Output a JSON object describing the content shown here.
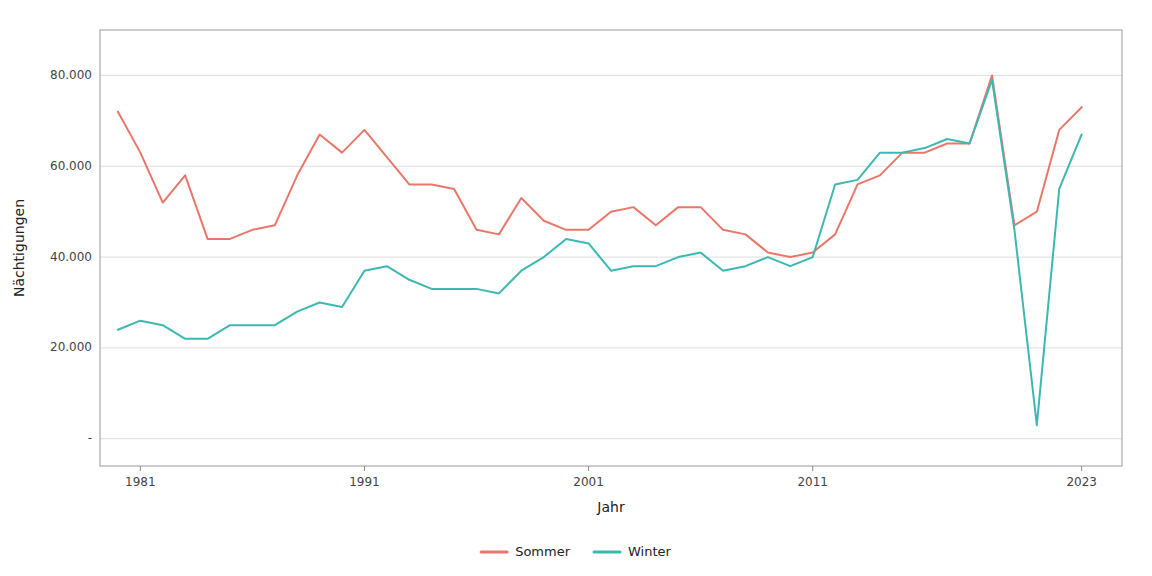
{
  "chart_data": {
    "type": "line",
    "xlabel": "Jahr",
    "ylabel": "Nächtigungen",
    "x": [
      1980,
      1981,
      1982,
      1983,
      1984,
      1985,
      1986,
      1987,
      1988,
      1989,
      1990,
      1991,
      1992,
      1993,
      1994,
      1995,
      1996,
      1997,
      1998,
      1999,
      2000,
      2001,
      2002,
      2003,
      2004,
      2005,
      2006,
      2007,
      2008,
      2009,
      2010,
      2011,
      2012,
      2013,
      2014,
      2015,
      2016,
      2017,
      2018,
      2019,
      2020,
      2021,
      2022,
      2023
    ],
    "series": [
      {
        "name": "Sommer",
        "color": "#E8776A",
        "values": [
          72000,
          63000,
          52000,
          58000,
          44000,
          44000,
          46000,
          47000,
          58000,
          67000,
          63000,
          68000,
          62000,
          56000,
          56000,
          55000,
          46000,
          45000,
          53000,
          48000,
          46000,
          46000,
          50000,
          51000,
          47000,
          51000,
          51000,
          46000,
          45000,
          41000,
          40000,
          41000,
          45000,
          56000,
          58000,
          63000,
          63000,
          65000,
          65000,
          80000,
          47000,
          50000,
          68000,
          73000
        ]
      },
      {
        "name": "Winter",
        "color": "#3CB8B2",
        "values": [
          24000,
          26000,
          25000,
          22000,
          22000,
          25000,
          25000,
          25000,
          28000,
          30000,
          29000,
          37000,
          38000,
          35000,
          33000,
          33000,
          33000,
          32000,
          37000,
          40000,
          44000,
          43000,
          37000,
          38000,
          38000,
          40000,
          41000,
          37000,
          38000,
          40000,
          38000,
          40000,
          56000,
          57000,
          63000,
          63000,
          64000,
          66000,
          65000,
          79000,
          46000,
          3000,
          55000,
          67000
        ]
      }
    ],
    "xlim": [
      1979.2,
      2024.8
    ],
    "xticks": [
      1981,
      1991,
      2001,
      2011,
      2023
    ],
    "ylim": [
      -6000,
      90000
    ],
    "yticks": [
      {
        "value": 0,
        "label": "-"
      },
      {
        "value": 20000,
        "label": "20.000"
      },
      {
        "value": 40000,
        "label": "40.000"
      },
      {
        "value": 60000,
        "label": "60.000"
      },
      {
        "value": 80000,
        "label": "80.000"
      }
    ],
    "grid": true,
    "legend": "bottom"
  }
}
